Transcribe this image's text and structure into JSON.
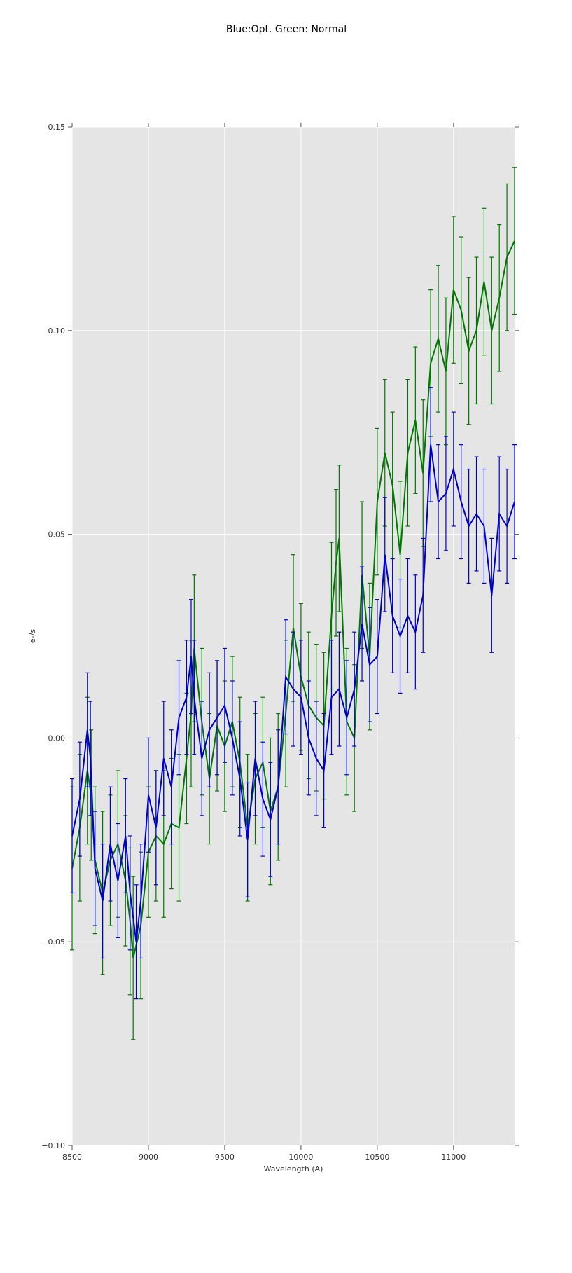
{
  "chart_data": {
    "type": "line",
    "title": "Blue:Opt. Green: Normal",
    "xlabel": "Wavelength (A)",
    "ylabel": "e-/s",
    "xlim": [
      8500,
      11400
    ],
    "ylim": [
      -0.1,
      0.15
    ],
    "xticks": [
      8500,
      9000,
      9500,
      10000,
      10500,
      11000
    ],
    "xtick_labels": [
      "8500",
      "9000",
      "9500",
      "10000",
      "10500",
      "11000"
    ],
    "yticks": [
      -0.1,
      -0.05,
      0.0,
      0.05,
      0.1,
      0.15
    ],
    "ytick_labels": [
      "−0.10",
      "−0.05",
      "0.00",
      "0.05",
      "0.10",
      "0.15"
    ],
    "grid": true,
    "background_color": "#e5e5e5",
    "series": [
      {
        "color": "#007700",
        "errorbar": true,
        "x": [
          8500,
          8550,
          8600,
          8625,
          8650,
          8700,
          8750,
          8800,
          8850,
          8880,
          8900,
          8950,
          9000,
          9050,
          9100,
          9150,
          9200,
          9250,
          9280,
          9300,
          9350,
          9400,
          9450,
          9500,
          9550,
          9600,
          9650,
          9700,
          9750,
          9800,
          9850,
          9900,
          9950,
          10000,
          10050,
          10100,
          10150,
          10200,
          10230,
          10250,
          10300,
          10350,
          10400,
          10450,
          10500,
          10550,
          10600,
          10650,
          10700,
          10750,
          10800,
          10850,
          10900,
          10950,
          11000,
          11050,
          11100,
          11150,
          11200,
          11250,
          11300,
          11350,
          11400
        ],
        "y": [
          -0.032,
          -0.022,
          -0.008,
          -0.014,
          -0.03,
          -0.038,
          -0.03,
          -0.026,
          -0.035,
          -0.045,
          -0.054,
          -0.046,
          -0.028,
          -0.024,
          -0.026,
          -0.021,
          -0.022,
          -0.005,
          0.006,
          0.022,
          0.004,
          -0.01,
          0.003,
          -0.002,
          0.004,
          -0.006,
          -0.022,
          -0.01,
          -0.006,
          -0.018,
          -0.012,
          0.006,
          0.027,
          0.015,
          0.008,
          0.005,
          0.003,
          0.03,
          0.043,
          0.049,
          0.004,
          0.0,
          0.04,
          0.02,
          0.058,
          0.07,
          0.062,
          0.045,
          0.07,
          0.078,
          0.065,
          0.092,
          0.098,
          0.09,
          0.11,
          0.105,
          0.095,
          0.1,
          0.112,
          0.1,
          0.108,
          0.118,
          0.122
        ],
        "err": [
          0.02,
          0.018,
          0.018,
          0.016,
          0.018,
          0.02,
          0.016,
          0.018,
          0.016,
          0.018,
          0.02,
          0.018,
          0.016,
          0.016,
          0.018,
          0.016,
          0.018,
          0.016,
          0.018,
          0.018,
          0.018,
          0.016,
          0.016,
          0.016,
          0.016,
          0.016,
          0.018,
          0.016,
          0.016,
          0.018,
          0.018,
          0.018,
          0.018,
          0.018,
          0.018,
          0.018,
          0.018,
          0.018,
          0.018,
          0.018,
          0.018,
          0.018,
          0.018,
          0.018,
          0.018,
          0.018,
          0.018,
          0.018,
          0.018,
          0.018,
          0.018,
          0.018,
          0.018,
          0.018,
          0.018,
          0.018,
          0.018,
          0.018,
          0.018,
          0.018,
          0.018,
          0.018,
          0.018
        ]
      },
      {
        "color": "#0000cc",
        "errorbar": true,
        "x": [
          8500,
          8550,
          8600,
          8620,
          8650,
          8700,
          8750,
          8800,
          8850,
          8880,
          8920,
          8950,
          9000,
          9050,
          9100,
          9150,
          9200,
          9250,
          9280,
          9300,
          9350,
          9400,
          9450,
          9500,
          9550,
          9600,
          9650,
          9700,
          9750,
          9800,
          9850,
          9900,
          9950,
          10000,
          10050,
          10100,
          10150,
          10200,
          10250,
          10300,
          10350,
          10400,
          10450,
          10500,
          10550,
          10600,
          10650,
          10700,
          10750,
          10800,
          10850,
          10900,
          10950,
          11000,
          11050,
          11100,
          11150,
          11200,
          11250,
          11300,
          11350,
          11400
        ],
        "y": [
          -0.024,
          -0.015,
          0.002,
          -0.005,
          -0.032,
          -0.04,
          -0.026,
          -0.035,
          -0.024,
          -0.038,
          -0.05,
          -0.04,
          -0.014,
          -0.022,
          -0.005,
          -0.012,
          0.005,
          0.01,
          0.02,
          0.01,
          -0.005,
          0.002,
          0.005,
          0.008,
          0.0,
          -0.01,
          -0.025,
          -0.005,
          -0.015,
          -0.02,
          -0.012,
          0.015,
          0.012,
          0.01,
          0.0,
          -0.005,
          -0.008,
          0.01,
          0.012,
          0.005,
          0.012,
          0.028,
          0.018,
          0.02,
          0.045,
          0.03,
          0.025,
          0.03,
          0.026,
          0.035,
          0.072,
          0.058,
          0.06,
          0.066,
          0.058,
          0.052,
          0.055,
          0.052,
          0.035,
          0.055,
          0.052,
          0.058
        ],
        "err": [
          0.014,
          0.014,
          0.014,
          0.014,
          0.014,
          0.014,
          0.014,
          0.014,
          0.014,
          0.014,
          0.014,
          0.014,
          0.014,
          0.014,
          0.014,
          0.014,
          0.014,
          0.014,
          0.014,
          0.014,
          0.014,
          0.014,
          0.014,
          0.014,
          0.014,
          0.014,
          0.014,
          0.014,
          0.014,
          0.014,
          0.014,
          0.014,
          0.014,
          0.014,
          0.014,
          0.014,
          0.014,
          0.014,
          0.014,
          0.014,
          0.014,
          0.014,
          0.014,
          0.014,
          0.014,
          0.014,
          0.014,
          0.014,
          0.014,
          0.014,
          0.014,
          0.014,
          0.014,
          0.014,
          0.014,
          0.014,
          0.014,
          0.014,
          0.014,
          0.014,
          0.014,
          0.014
        ]
      }
    ]
  }
}
